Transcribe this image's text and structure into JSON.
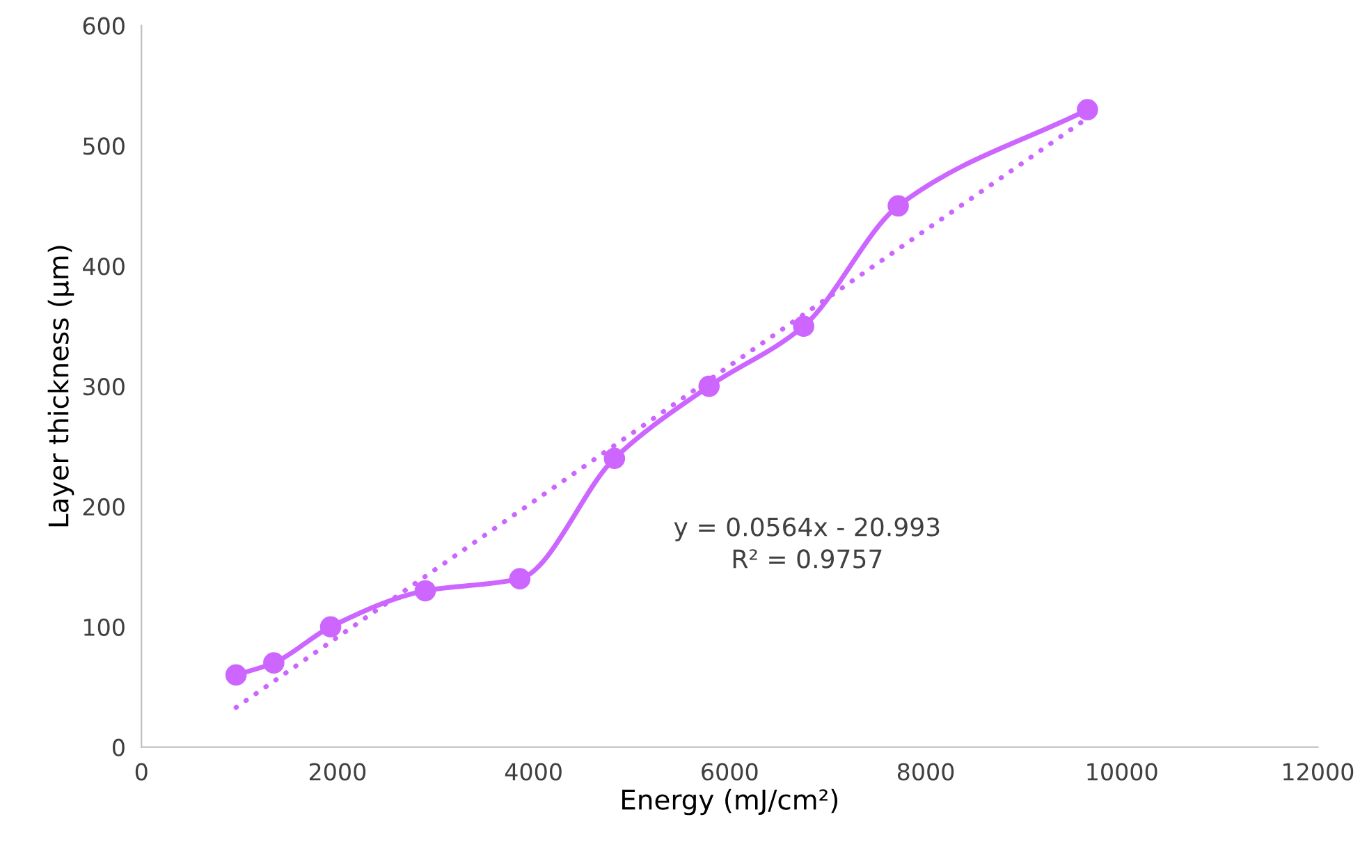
{
  "chart_data": {
    "type": "line",
    "xlabel": "Energy (mJ/cm²)",
    "ylabel": "Layer thickness (µm)",
    "xlim": [
      0,
      12000
    ],
    "xticks": [
      0,
      2000,
      4000,
      6000,
      8000,
      10000,
      12000
    ],
    "ylim": [
      0,
      600
    ],
    "yticks": [
      0,
      100,
      200,
      300,
      400,
      500,
      600
    ],
    "grid": false,
    "legend": false,
    "series": [
      {
        "color": "#cc66ff",
        "marker": "circle",
        "line_style": "solid",
        "x": [
          965,
          1350,
          1930,
          2895,
          3860,
          4825,
          5790,
          6755,
          7720,
          9650
        ],
        "values": [
          60,
          70,
          100,
          130,
          140,
          240,
          300,
          350,
          450,
          530
        ]
      },
      {
        "color": "#cc66ff",
        "marker": "none",
        "line_style": "dotted",
        "x": [
          965,
          9650
        ],
        "values": [
          33,
          523
        ]
      }
    ],
    "annotations": [
      "y = 0.0564x - 20.993\nR² = 0.9757"
    ]
  }
}
